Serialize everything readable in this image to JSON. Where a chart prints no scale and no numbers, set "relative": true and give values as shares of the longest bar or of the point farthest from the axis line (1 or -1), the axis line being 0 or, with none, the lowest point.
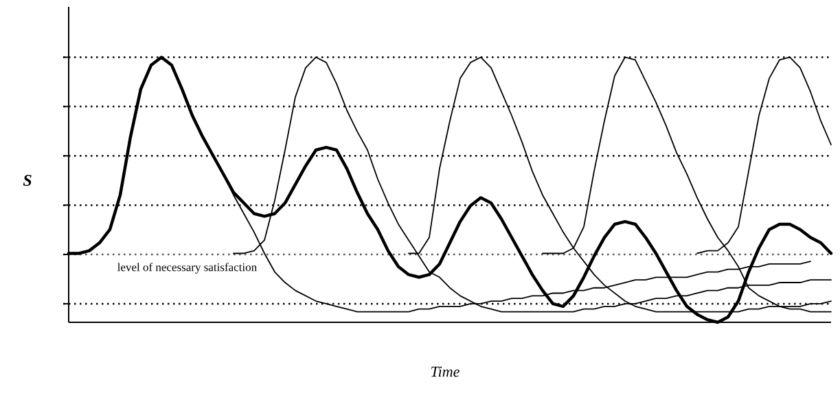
{
  "chart_data": {
    "type": "line",
    "relative": true,
    "xlabel": "Time",
    "ylabel": "S",
    "marker": "none",
    "line_style": "solid",
    "categories": [
      null,
      null,
      null,
      null,
      null,
      null,
      null,
      null,
      null,
      null,
      null,
      null,
      null,
      null,
      null,
      null,
      null,
      null,
      null,
      null,
      null,
      null,
      null,
      null,
      null,
      null,
      null,
      null,
      null,
      null,
      null,
      null,
      null,
      null,
      null,
      null,
      null,
      null,
      null,
      null,
      null,
      null,
      null,
      null,
      null,
      null,
      null,
      null,
      null,
      null,
      null,
      null,
      null,
      null,
      null,
      null,
      null,
      null,
      null,
      null,
      null,
      null,
      null,
      null,
      null,
      null,
      null,
      null,
      null,
      null,
      null,
      null,
      null,
      null,
      null
    ],
    "ref_lines": [
      {
        "axis": "y",
        "value": 0.256,
        "label": "level of necessary satisfaction",
        "line_style": "dotted",
        "color": "#555555"
      },
      {
        "axis": "y",
        "value": 0.07,
        "line_style": "dotted",
        "color": "#000000"
      },
      {
        "axis": "y",
        "value": 0.442,
        "line_style": "dotted",
        "color": "#000000"
      },
      {
        "axis": "y",
        "value": 0.628,
        "line_style": "dotted",
        "color": "#000000"
      },
      {
        "axis": "y",
        "value": 0.814,
        "line_style": "dotted",
        "color": "#000000"
      },
      {
        "axis": "y",
        "value": 1.0,
        "line_style": "dotted",
        "color": "#000000"
      }
    ],
    "series": [
      {
        "color": "#000000",
        "values": [
          0.26,
          0.26,
          0.27,
          0.3,
          0.35,
          0.48,
          0.7,
          0.88,
          0.97,
          1.0,
          0.97,
          0.88,
          0.78,
          0.7,
          0.63,
          0.56,
          0.49,
          0.45,
          0.41,
          0.4,
          0.41,
          0.45,
          0.52,
          0.59,
          0.65,
          0.66,
          0.65,
          0.58,
          0.49,
          0.41,
          0.35,
          0.27,
          0.21,
          0.18,
          0.17,
          0.18,
          0.22,
          0.3,
          0.38,
          0.44,
          0.47,
          0.45,
          0.39,
          0.32,
          0.25,
          0.18,
          0.12,
          0.07,
          0.06,
          0.1,
          0.17,
          0.25,
          0.32,
          0.37,
          0.38,
          0.37,
          0.32,
          0.26,
          0.19,
          0.12,
          0.06,
          0.03,
          0.01,
          0,
          0.02,
          0.08,
          0.19,
          0.28,
          0.35,
          0.37,
          0.37,
          0.35,
          0.32,
          0.3,
          0.26
        ]
      },
      {
        "color": "#000000",
        "values": [
          0.26,
          0.26,
          0.27,
          0.3,
          0.35,
          0.48,
          0.7,
          0.88,
          0.97,
          1.0,
          0.97,
          0.88,
          0.78,
          0.7,
          0.63,
          0.56,
          0.48,
          0.41,
          0.34,
          0.26,
          0.19,
          0.15,
          0.12,
          0.1,
          0.08,
          0.07,
          0.06,
          0.05,
          0.04,
          0.04,
          0.04,
          0.04,
          0.04,
          0.04,
          0.05,
          0.05,
          0.06,
          0.06,
          0.06,
          0.07,
          0.07,
          0.08,
          0.08,
          0.09,
          0.09,
          0.1,
          0.1,
          0.11,
          0.11,
          0.12,
          0.12,
          0.13,
          0.13,
          0.14,
          0.15,
          0.16,
          0.16,
          0.17,
          0.17,
          0.17,
          0.17,
          0.18,
          0.19,
          0.19,
          0.2,
          0.2,
          0.21,
          0.21,
          0.22,
          0.22,
          0.22,
          0.22,
          0.23,
          null,
          null
        ]
      },
      {
        "color": "#000000",
        "values": [
          null,
          null,
          null,
          null,
          null,
          null,
          null,
          null,
          null,
          null,
          null,
          null,
          null,
          null,
          null,
          null,
          0.26,
          0.26,
          0.27,
          0.31,
          0.46,
          0.65,
          0.85,
          0.96,
          1.0,
          0.98,
          0.9,
          0.8,
          0.72,
          0.65,
          0.54,
          0.45,
          0.37,
          0.31,
          0.25,
          0.19,
          0.17,
          0.13,
          0.1,
          0.08,
          0.06,
          0.05,
          0.04,
          0.04,
          0.04,
          0.04,
          0.04,
          0.04,
          0.04,
          0.04,
          0.05,
          0.05,
          0.06,
          0.06,
          0.07,
          0.07,
          0.08,
          0.09,
          0.09,
          0.1,
          0.1,
          0.11,
          0.12,
          0.12,
          0.13,
          0.13,
          0.14,
          0.14,
          0.14,
          0.15,
          0.15,
          0.15,
          0.16,
          0.16,
          0.16
        ]
      },
      {
        "color": "#000000",
        "values": [
          null,
          null,
          null,
          null,
          null,
          null,
          null,
          null,
          null,
          null,
          null,
          null,
          null,
          null,
          null,
          null,
          null,
          null,
          null,
          null,
          null,
          null,
          null,
          null,
          null,
          null,
          null,
          null,
          null,
          null,
          null,
          null,
          null,
          0.26,
          0.26,
          0.32,
          0.58,
          0.76,
          0.92,
          0.98,
          1.0,
          0.96,
          0.87,
          0.78,
          0.68,
          0.57,
          0.48,
          0.41,
          0.34,
          0.28,
          0.23,
          0.18,
          0.14,
          0.11,
          0.08,
          0.06,
          0.05,
          0.04,
          0.04,
          0.04,
          0.04,
          0.04,
          0.04,
          0.04,
          0.04,
          0.04,
          0.05,
          0.05,
          0.06,
          0.06,
          0.06,
          0.06,
          0.07,
          0.07,
          0.08
        ]
      },
      {
        "color": "#000000",
        "values": [
          null,
          null,
          null,
          null,
          null,
          null,
          null,
          null,
          null,
          null,
          null,
          null,
          null,
          null,
          null,
          null,
          null,
          null,
          null,
          null,
          null,
          null,
          null,
          null,
          null,
          null,
          null,
          null,
          null,
          null,
          null,
          null,
          null,
          null,
          null,
          null,
          null,
          null,
          null,
          null,
          null,
          null,
          null,
          null,
          null,
          null,
          0.26,
          0.26,
          0.26,
          0.28,
          0.36,
          0.57,
          0.76,
          0.93,
          1.0,
          0.99,
          0.91,
          0.83,
          0.74,
          0.64,
          0.56,
          0.47,
          0.39,
          0.32,
          0.27,
          0.21,
          0.13,
          0.1,
          0.08,
          0.06,
          0.05,
          0.05,
          0.04,
          0.04,
          0.04
        ]
      },
      {
        "color": "#000000",
        "values": [
          null,
          null,
          null,
          null,
          null,
          null,
          null,
          null,
          null,
          null,
          null,
          null,
          null,
          null,
          null,
          null,
          null,
          null,
          null,
          null,
          null,
          null,
          null,
          null,
          null,
          null,
          null,
          null,
          null,
          null,
          null,
          null,
          null,
          null,
          null,
          null,
          null,
          null,
          null,
          null,
          null,
          null,
          null,
          null,
          null,
          null,
          null,
          null,
          null,
          null,
          null,
          null,
          null,
          null,
          null,
          null,
          null,
          null,
          null,
          null,
          null,
          0.26,
          0.27,
          0.27,
          0.3,
          0.36,
          0.57,
          0.78,
          0.92,
          0.99,
          1.0,
          0.96,
          0.87,
          0.76,
          0.67
        ]
      }
    ]
  }
}
